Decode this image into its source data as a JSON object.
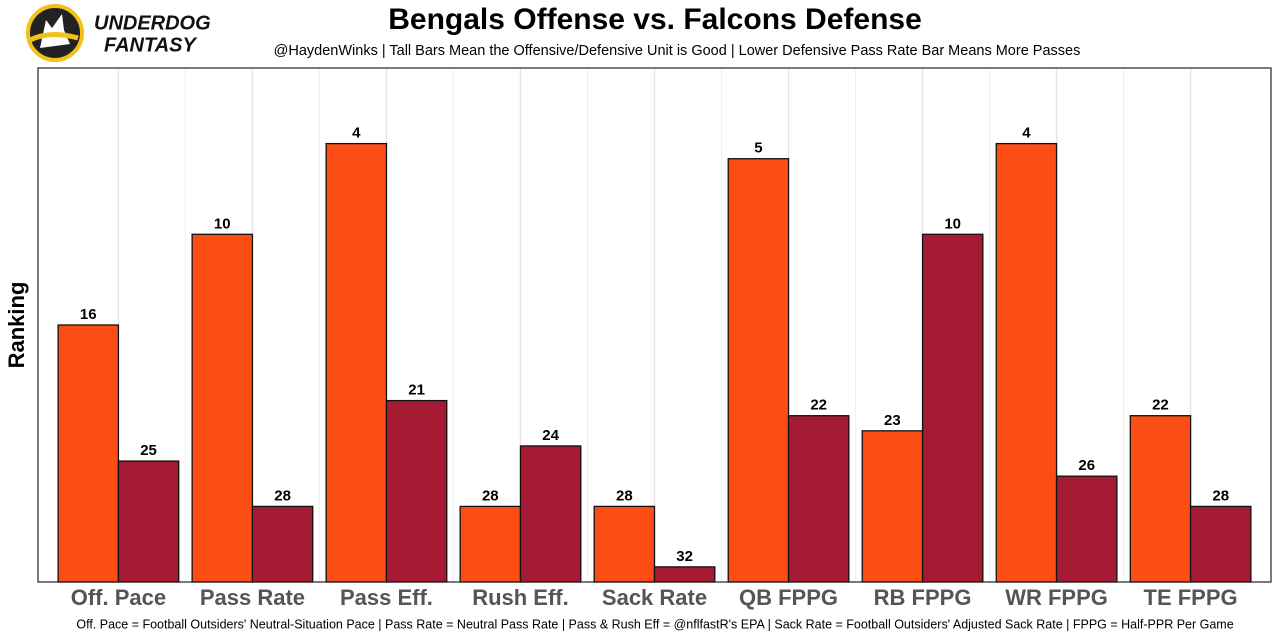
{
  "logo": {
    "line1": "UNDERDOG",
    "line2": "FANTASY"
  },
  "chart_data": {
    "type": "bar",
    "title": "Bengals Offense vs. Falcons Defense",
    "subtitle": "@HaydenWinks | Tall Bars Mean the Offensive/Defensive Unit is Good | Lower Defensive Pass Rate Bar Means More Passes",
    "y_label": "Ranking",
    "footnote": "Off. Pace = Football Outsiders' Neutral-Situation Pace | Pass Rate = Neutral Pass Rate | Pass & Rush Eff = @nflfastR's EPA | Sack Rate = Football Outsiders' Adjusted Sack Rate | FPPG = Half-PPR Per Game",
    "categories": [
      "Off. Pace",
      "Pass Rate",
      "Pass Eff.",
      "Rush Eff.",
      "Sack Rate",
      "QB FPPG",
      "RB FPPG",
      "WR FPPG",
      "TE FPPG"
    ],
    "series": [
      {
        "color": "#fc4e14",
        "values": [
          16,
          10,
          4,
          28,
          28,
          5,
          23,
          4,
          22
        ]
      },
      {
        "color": "#a51b33",
        "values": [
          25,
          28,
          21,
          24,
          32,
          22,
          10,
          26,
          28
        ]
      }
    ],
    "ylim": [
      33,
      -1
    ]
  }
}
